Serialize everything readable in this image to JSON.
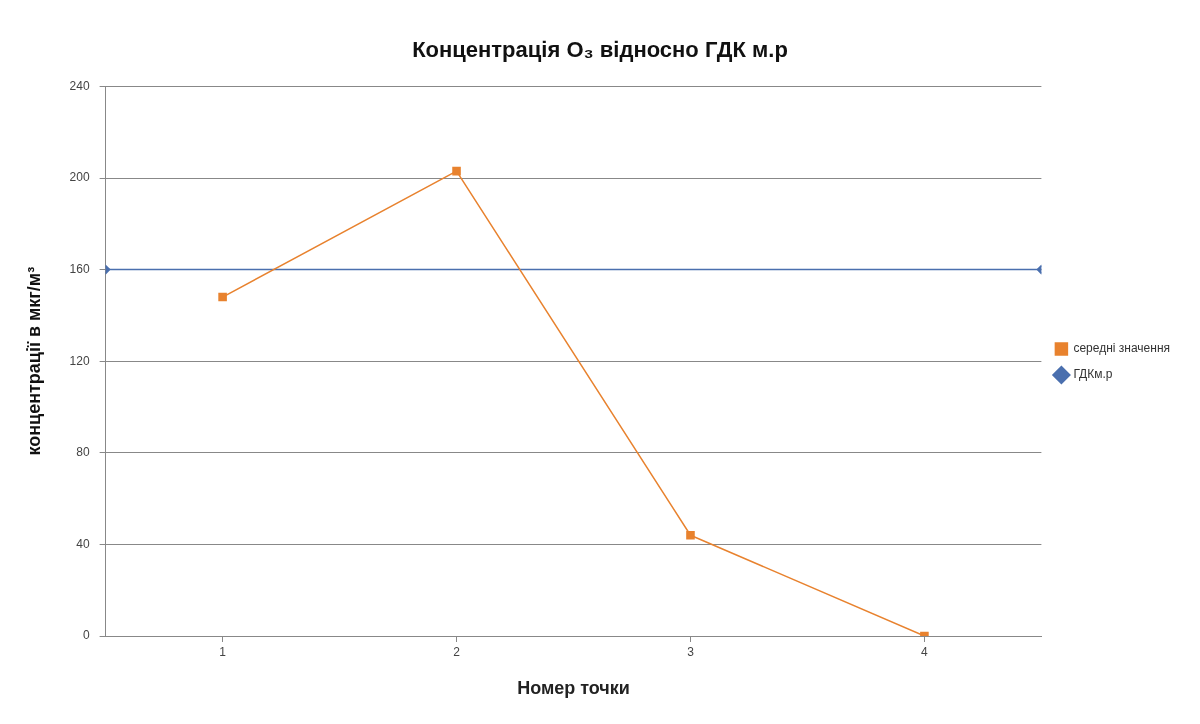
{
  "chart_data": {
    "type": "line",
    "title": "Концентрація O₃ відносно ГДК м.р",
    "xlabel": "Номер точки",
    "ylabel": "концентрації в мкг/м³",
    "xlim": [
      0.5,
      4.5
    ],
    "xticks": [
      1,
      2,
      3,
      4
    ],
    "ylim": [
      0,
      240
    ],
    "yticks": [
      0,
      40,
      80,
      120,
      160,
      200,
      240
    ],
    "grid": "y",
    "legend": "right",
    "series": [
      {
        "name": "середні значення",
        "color": "#e8822e",
        "x": [
          1,
          2,
          3,
          4
        ],
        "values": [
          148,
          203,
          44,
          0
        ],
        "marker": "square"
      },
      {
        "name": "ГДКм.р",
        "color": "#4a6fae",
        "x": [
          0.5,
          4.5
        ],
        "values": [
          160,
          160
        ],
        "marker": "diamond"
      }
    ]
  }
}
